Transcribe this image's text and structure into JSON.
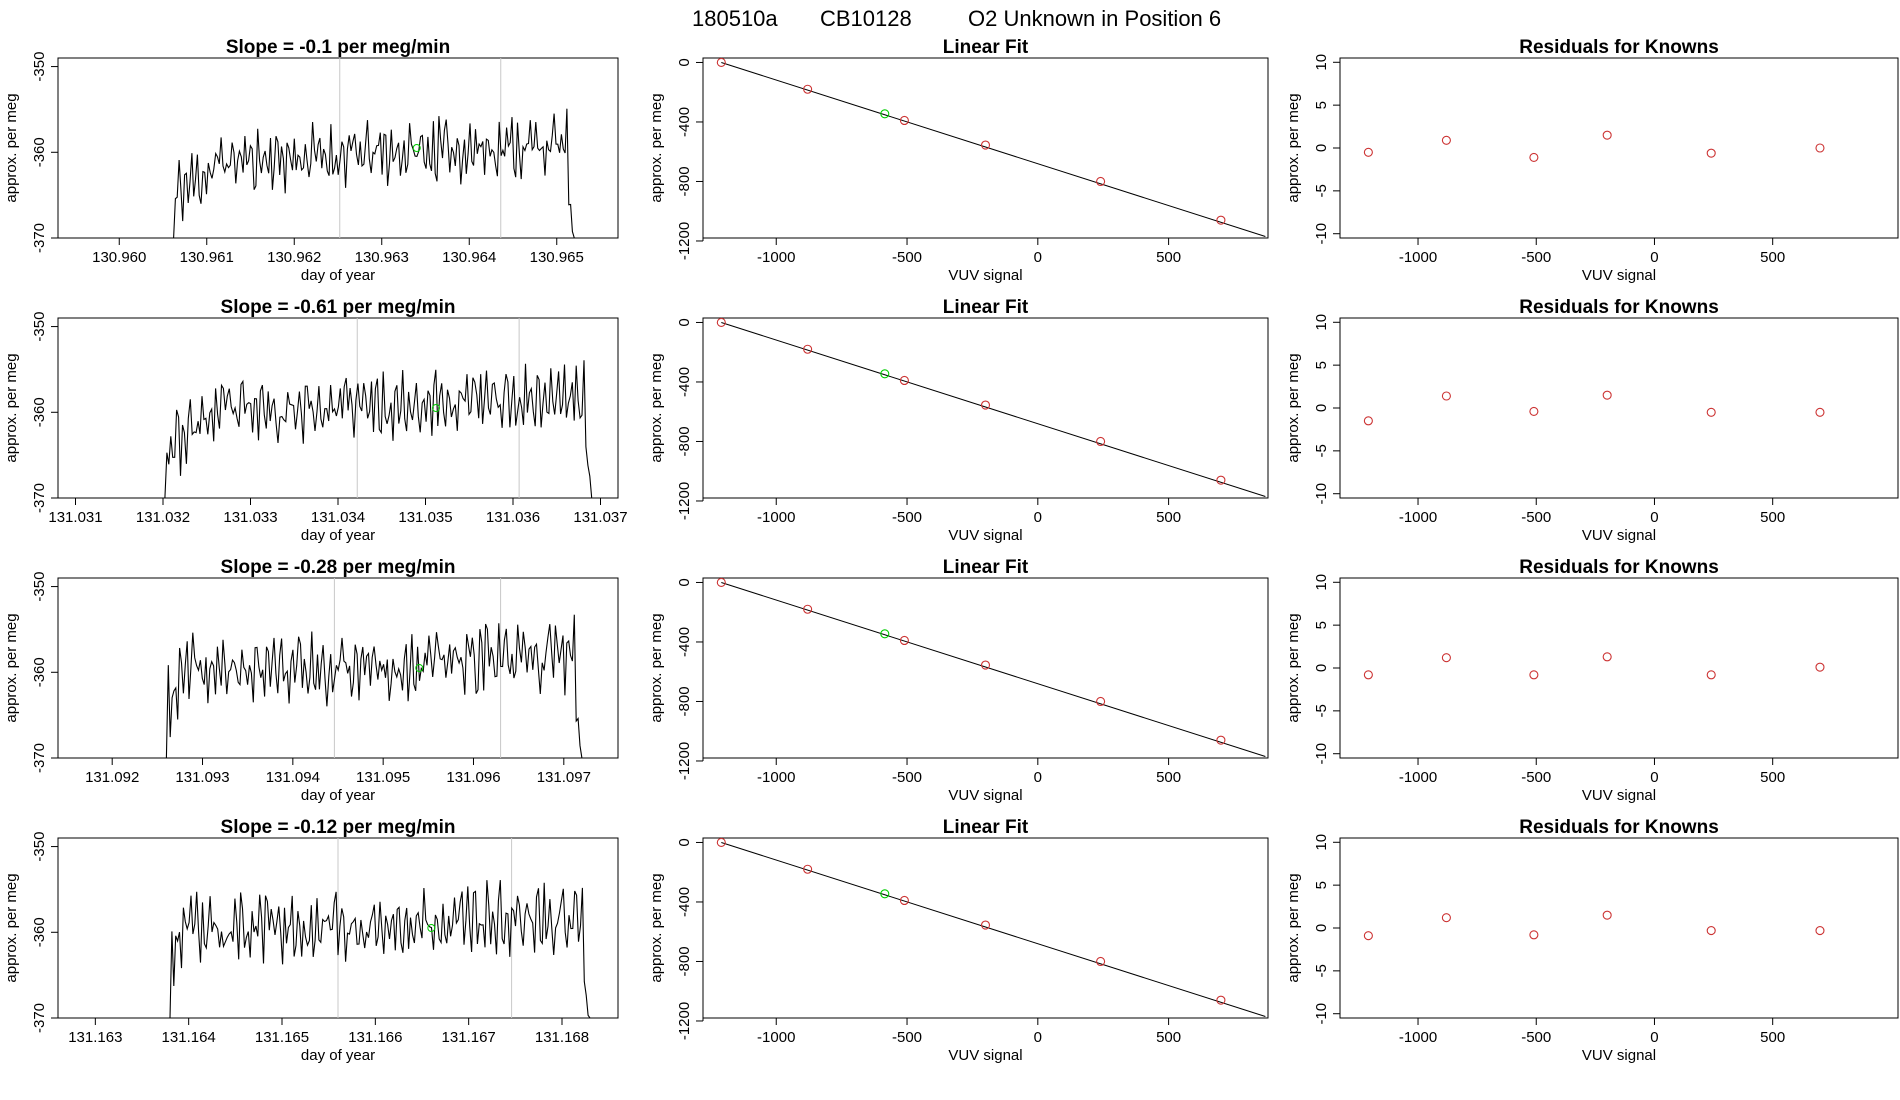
{
  "figure": {
    "header": {
      "run": "180510a",
      "cylinder": "CB10128",
      "label": "O2 Unknown in Position  6"
    }
  },
  "chart_data": [
    {
      "type": "line",
      "row": 1,
      "title_prefix": "Slope = ",
      "slope": "-0.1",
      "title_suffix": " per meg/min",
      "xlabel": "day of year",
      "ylabel": "approx. per meg",
      "xlim": [
        130.9593,
        130.9657
      ],
      "ylim": [
        -370,
        -349
      ],
      "xticks": [
        130.96,
        130.961,
        130.962,
        130.963,
        130.964,
        130.965
      ],
      "xtick_labels": [
        "130.960",
        "130.961",
        "130.962",
        "130.963",
        "130.964",
        "130.965"
      ],
      "yticks": [
        -370,
        -360,
        -350
      ],
      "ytick_labels": [
        "-370",
        "-360",
        "-350"
      ],
      "x_start": 130.9606,
      "x_end": 130.9652,
      "plateau_start": 130.9612,
      "vlines": [
        130.96252,
        130.96436
      ],
      "marker": {
        "x": 130.9634,
        "y": -359.5,
        "color": "#00cc00"
      },
      "level": -361.0,
      "amp": 3.5,
      "seed": 11
    },
    {
      "type": "scatter",
      "row": 1,
      "title": "Linear Fit",
      "xlabel": "VUV signal",
      "ylabel": "approx. per meg",
      "xlim": [
        -1280,
        880
      ],
      "ylim": [
        -1180,
        30
      ],
      "xticks": [
        -1000,
        -500,
        0,
        500
      ],
      "xtick_labels": [
        "-1000",
        "-500",
        "0",
        "500"
      ],
      "yticks": [
        0,
        -400,
        -800,
        -1200
      ],
      "ytick_labels": [
        "0",
        "-400",
        "-800",
        "-1200"
      ],
      "fit_line": {
        "x": [
          -1210,
          870
        ],
        "y": [
          0,
          -1170
        ]
      },
      "points": {
        "x": [
          -1210,
          -880,
          -510,
          -200,
          240,
          700
        ],
        "y": [
          0,
          -180,
          -390,
          -555,
          -800,
          -1060
        ],
        "color": "#cc3333"
      },
      "highlight": {
        "x": [
          -585
        ],
        "y": [
          -345
        ],
        "color": "#00cc00"
      }
    },
    {
      "type": "scatter",
      "row": 1,
      "title": "Residuals for Knowns",
      "xlabel": "VUV signal",
      "ylabel": "approx. per meg",
      "xlim": [
        -1330,
        1030
      ],
      "ylim": [
        -10.5,
        10.5
      ],
      "xticks": [
        -1000,
        -500,
        0,
        500
      ],
      "xtick_labels": [
        "-1000",
        "-500",
        "0",
        "500"
      ],
      "yticks": [
        -10,
        -5,
        0,
        5,
        10
      ],
      "ytick_labels": [
        "-10",
        "-5",
        "0",
        "5",
        "10"
      ],
      "points": {
        "x": [
          -1210,
          -880,
          -510,
          -200,
          240,
          700
        ],
        "y": [
          -0.5,
          0.9,
          -1.1,
          1.5,
          -0.6,
          0.0
        ],
        "color": "#cc3333"
      }
    },
    {
      "type": "line",
      "row": 2,
      "title_prefix": "Slope = ",
      "slope": "-0.61",
      "title_suffix": " per meg/min",
      "xlabel": "day of year",
      "ylabel": "approx. per meg",
      "xlim": [
        131.0308,
        131.0372
      ],
      "ylim": [
        -370,
        -349
      ],
      "xticks": [
        131.031,
        131.032,
        131.033,
        131.034,
        131.035,
        131.036,
        131.037
      ],
      "xtick_labels": [
        "131.031",
        "131.032",
        "131.033",
        "131.034",
        "131.035",
        "131.036",
        "131.037"
      ],
      "yticks": [
        -370,
        -360,
        -350
      ],
      "ytick_labels": [
        "-370",
        "-360",
        "-350"
      ],
      "x_start": 131.032,
      "x_end": 131.0369,
      "plateau_start": 131.0326,
      "vlines": [
        131.03422,
        131.03607
      ],
      "marker": {
        "x": 131.03512,
        "y": -359.5,
        "color": "#00cc00"
      },
      "level": -360.0,
      "amp": 3.6,
      "seed": 23
    },
    {
      "type": "scatter",
      "row": 2,
      "title": "Linear Fit",
      "xlabel": "VUV signal",
      "ylabel": "approx. per meg",
      "xlim": [
        -1280,
        880
      ],
      "ylim": [
        -1180,
        30
      ],
      "xticks": [
        -1000,
        -500,
        0,
        500
      ],
      "xtick_labels": [
        "-1000",
        "-500",
        "0",
        "500"
      ],
      "yticks": [
        0,
        -400,
        -800,
        -1200
      ],
      "ytick_labels": [
        "0",
        "-400",
        "-800",
        "-1200"
      ],
      "fit_line": {
        "x": [
          -1210,
          870
        ],
        "y": [
          0,
          -1170
        ]
      },
      "points": {
        "x": [
          -1210,
          -880,
          -510,
          -200,
          240,
          700
        ],
        "y": [
          0,
          -180,
          -390,
          -555,
          -800,
          -1060
        ],
        "color": "#cc3333"
      },
      "highlight": {
        "x": [
          -585
        ],
        "y": [
          -345
        ],
        "color": "#00cc00"
      }
    },
    {
      "type": "scatter",
      "row": 2,
      "title": "Residuals for Knowns",
      "xlabel": "VUV signal",
      "ylabel": "approx. per meg",
      "xlim": [
        -1330,
        1030
      ],
      "ylim": [
        -10.5,
        10.5
      ],
      "xticks": [
        -1000,
        -500,
        0,
        500
      ],
      "xtick_labels": [
        "-1000",
        "-500",
        "0",
        "500"
      ],
      "yticks": [
        -10,
        -5,
        0,
        5,
        10
      ],
      "ytick_labels": [
        "-10",
        "-5",
        "0",
        "5",
        "10"
      ],
      "points": {
        "x": [
          -1210,
          -880,
          -510,
          -200,
          240,
          700
        ],
        "y": [
          -1.5,
          1.4,
          -0.4,
          1.5,
          -0.5,
          -0.5
        ],
        "color": "#cc3333"
      }
    },
    {
      "type": "line",
      "row": 3,
      "title_prefix": "Slope = ",
      "slope": "-0.28",
      "title_suffix": " per meg/min",
      "xlabel": "day of year",
      "ylabel": "approx. per meg",
      "xlim": [
        131.0914,
        131.0976
      ],
      "ylim": [
        -370,
        -349
      ],
      "xticks": [
        131.092,
        131.093,
        131.094,
        131.095,
        131.096,
        131.097
      ],
      "xtick_labels": [
        "131.092",
        "131.093",
        "131.094",
        "131.095",
        "131.096",
        "131.097"
      ],
      "yticks": [
        -370,
        -360,
        -350
      ],
      "ytick_labels": [
        "-370",
        "-360",
        "-350"
      ],
      "x_start": 131.0926,
      "x_end": 131.0972,
      "plateau_start": 131.0928,
      "vlines": [
        131.09446,
        131.0963
      ],
      "marker": {
        "x": 131.0954,
        "y": -359.5,
        "color": "#00cc00"
      },
      "level": -360.0,
      "amp": 4.0,
      "seed": 37
    },
    {
      "type": "scatter",
      "row": 3,
      "title": "Linear Fit",
      "xlabel": "VUV signal",
      "ylabel": "approx. per meg",
      "xlim": [
        -1280,
        880
      ],
      "ylim": [
        -1180,
        30
      ],
      "xticks": [
        -1000,
        -500,
        0,
        500
      ],
      "xtick_labels": [
        "-1000",
        "-500",
        "0",
        "500"
      ],
      "yticks": [
        0,
        -400,
        -800,
        -1200
      ],
      "ytick_labels": [
        "0",
        "-400",
        "-800",
        "-1200"
      ],
      "fit_line": {
        "x": [
          -1210,
          870
        ],
        "y": [
          0,
          -1170
        ]
      },
      "points": {
        "x": [
          -1210,
          -880,
          -510,
          -200,
          240,
          700
        ],
        "y": [
          0,
          -180,
          -390,
          -555,
          -800,
          -1060
        ],
        "color": "#cc3333"
      },
      "highlight": {
        "x": [
          -585
        ],
        "y": [
          -345
        ],
        "color": "#00cc00"
      }
    },
    {
      "type": "scatter",
      "row": 3,
      "title": "Residuals for Knowns",
      "xlabel": "VUV signal",
      "ylabel": "approx. per meg",
      "xlim": [
        -1330,
        1030
      ],
      "ylim": [
        -10.5,
        10.5
      ],
      "xticks": [
        -1000,
        -500,
        0,
        500
      ],
      "xtick_labels": [
        "-1000",
        "-500",
        "0",
        "500"
      ],
      "yticks": [
        -10,
        -5,
        0,
        5,
        10
      ],
      "ytick_labels": [
        "-10",
        "-5",
        "0",
        "5",
        "10"
      ],
      "points": {
        "x": [
          -1210,
          -880,
          -510,
          -200,
          240,
          700
        ],
        "y": [
          -0.8,
          1.2,
          -0.8,
          1.3,
          -0.8,
          0.1
        ],
        "color": "#cc3333"
      }
    },
    {
      "type": "line",
      "row": 4,
      "title_prefix": "Slope = ",
      "slope": "-0.12",
      "title_suffix": " per meg/min",
      "xlabel": "day of year",
      "ylabel": "approx. per meg",
      "xlim": [
        131.1626,
        131.1686
      ],
      "ylim": [
        -370,
        -349
      ],
      "xticks": [
        131.163,
        131.164,
        131.165,
        131.166,
        131.167,
        131.168
      ],
      "xtick_labels": [
        "131.163",
        "131.164",
        "131.165",
        "131.166",
        "131.167",
        "131.168"
      ],
      "yticks": [
        -370,
        -360,
        -350
      ],
      "ytick_labels": [
        "-370",
        "-360",
        "-350"
      ],
      "x_start": 131.1638,
      "x_end": 131.1683,
      "plateau_start": 131.1639,
      "vlines": [
        131.1656,
        131.16746
      ],
      "marker": {
        "x": 131.1666,
        "y": -359.5,
        "color": "#00cc00"
      },
      "level": -360.0,
      "amp": 3.8,
      "seed": 53
    },
    {
      "type": "scatter",
      "row": 4,
      "title": "Linear Fit",
      "xlabel": "VUV signal",
      "ylabel": "approx. per meg",
      "xlim": [
        -1280,
        880
      ],
      "ylim": [
        -1180,
        30
      ],
      "xticks": [
        -1000,
        -500,
        0,
        500
      ],
      "xtick_labels": [
        "-1000",
        "-500",
        "0",
        "500"
      ],
      "yticks": [
        0,
        -400,
        -800,
        -1200
      ],
      "ytick_labels": [
        "0",
        "-400",
        "-800",
        "-1200"
      ],
      "fit_line": {
        "x": [
          -1210,
          870
        ],
        "y": [
          0,
          -1170
        ]
      },
      "points": {
        "x": [
          -1210,
          -880,
          -510,
          -200,
          240,
          700
        ],
        "y": [
          0,
          -180,
          -390,
          -555,
          -800,
          -1060
        ],
        "color": "#cc3333"
      },
      "highlight": {
        "x": [
          -585
        ],
        "y": [
          -345
        ],
        "color": "#00cc00"
      }
    },
    {
      "type": "scatter",
      "row": 4,
      "title": "Residuals for Knowns",
      "xlabel": "VUV signal",
      "ylabel": "approx. per meg",
      "xlim": [
        -1330,
        1030
      ],
      "ylim": [
        -10.5,
        10.5
      ],
      "xticks": [
        -1000,
        -500,
        0,
        500
      ],
      "xtick_labels": [
        "-1000",
        "-500",
        "0",
        "500"
      ],
      "yticks": [
        -10,
        -5,
        0,
        5,
        10
      ],
      "ytick_labels": [
        "-10",
        "-5",
        "0",
        "5",
        "10"
      ],
      "points": {
        "x": [
          -1210,
          -880,
          -510,
          -200,
          240,
          700
        ],
        "y": [
          -0.9,
          1.2,
          -0.8,
          1.5,
          -0.3,
          -0.3
        ],
        "color": "#cc3333"
      }
    }
  ]
}
